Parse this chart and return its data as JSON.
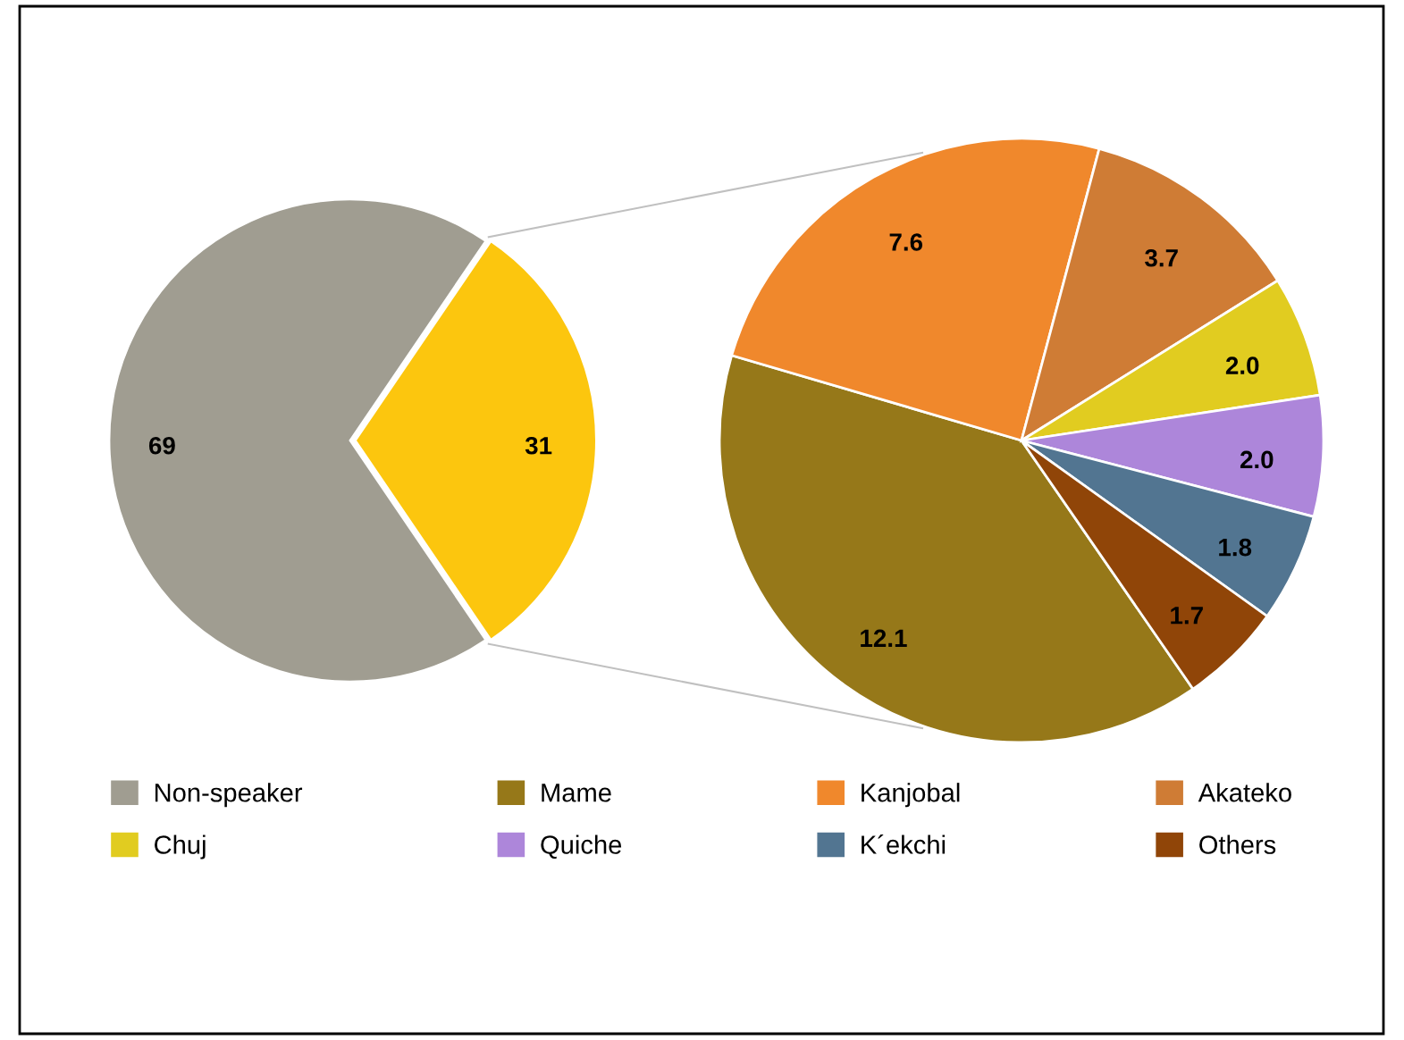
{
  "chart_data": [
    {
      "type": "pie",
      "categories": [
        "Non-speaker",
        null
      ],
      "values": [
        69,
        31
      ],
      "colors": [
        "#a09d91",
        "#fcc60e"
      ],
      "value_labels": [
        "69",
        "31"
      ],
      "legend": "bottom"
    },
    {
      "type": "pie",
      "categories": [
        "Mame",
        "Kanjobal",
        "Akateko",
        "Chuj",
        "Quiche",
        "K´ekchi",
        "Others"
      ],
      "values": [
        12.1,
        7.6,
        3.7,
        2.0,
        2.0,
        1.8,
        1.7
      ],
      "colors": [
        "#967819",
        "#f0882c",
        "#cf7c35",
        "#e1cc20",
        "#ad86da",
        "#527591",
        "#904508"
      ],
      "value_labels": [
        "12.1",
        "7.6",
        "3.7",
        "2.0",
        "2.0",
        "1.8",
        "1.7"
      ],
      "legend": "bottom"
    }
  ]
}
